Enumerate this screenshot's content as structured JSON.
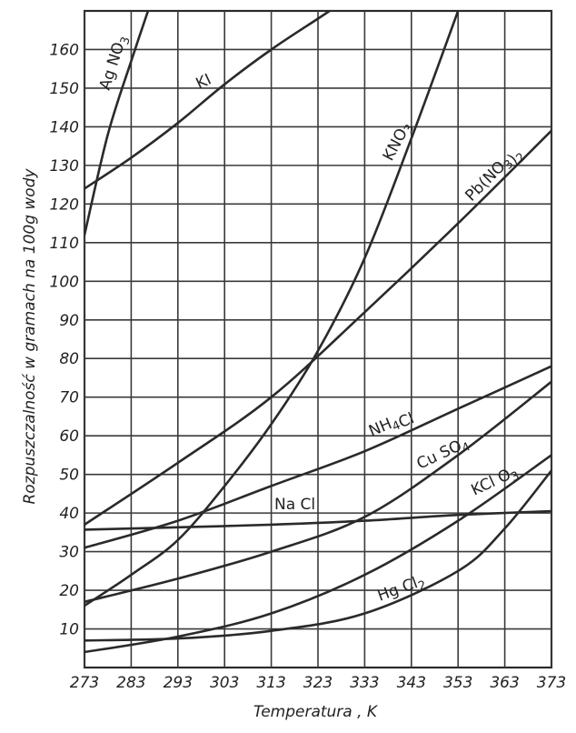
{
  "chart_data": {
    "type": "line",
    "xlabel": "Temperatura , K",
    "ylabel": "Rozpuszczalność w gramach na 100g wody",
    "xlim": [
      273,
      373
    ],
    "ylim": [
      0,
      170
    ],
    "x_ticks": [
      "273",
      "283",
      "293",
      "303",
      "313",
      "323",
      "333",
      "343",
      "353",
      "363",
      "373"
    ],
    "y_ticks": [
      "10",
      "20",
      "30",
      "40",
      "50",
      "60",
      "70",
      "80",
      "90",
      "100",
      "110",
      "120",
      "130",
      "140",
      "150",
      "160"
    ],
    "grid": true,
    "series": [
      {
        "name": "AgNO3",
        "label": "Ag NO3",
        "x": [
          273,
          278,
          283,
          288
        ],
        "y": [
          112,
          138,
          157,
          175
        ]
      },
      {
        "name": "KI",
        "label": "KI",
        "x": [
          273,
          283,
          293,
          303,
          313,
          323,
          328
        ],
        "y": [
          124,
          132,
          141,
          151,
          160,
          168,
          172
        ]
      },
      {
        "name": "KNO3",
        "label": "KNO3",
        "x": [
          273,
          283,
          293,
          303,
          313,
          323,
          333,
          343,
          353
        ],
        "y": [
          16,
          24,
          33,
          47,
          63,
          82,
          106,
          137,
          170
        ]
      },
      {
        "name": "Pb(NO3)2",
        "label": "Pb(NO3)2",
        "x": [
          273,
          293,
          313,
          333,
          353,
          373
        ],
        "y": [
          37,
          53,
          70,
          92,
          115,
          139
        ]
      },
      {
        "name": "NH4Cl",
        "label": "NH4Cl",
        "x": [
          273,
          293,
          313,
          333,
          353,
          373
        ],
        "y": [
          31,
          38,
          47,
          56,
          67,
          78
        ]
      },
      {
        "name": "CuSO4",
        "label": "Cu SO4",
        "x": [
          273,
          293,
          313,
          333,
          353,
          373
        ],
        "y": [
          17,
          23,
          30,
          39,
          55,
          74
        ]
      },
      {
        "name": "NaCl",
        "label": "Na Cl",
        "x": [
          273,
          293,
          313,
          333,
          353,
          373
        ],
        "y": [
          35.7,
          36.3,
          37,
          38,
          39.5,
          40.5
        ]
      },
      {
        "name": "KClO3",
        "label": "KCl O3",
        "x": [
          273,
          293,
          313,
          333,
          353,
          373
        ],
        "y": [
          4,
          8,
          14,
          24,
          38,
          55
        ]
      },
      {
        "name": "HgCl2",
        "label": "Hg Cl2",
        "x": [
          273,
          293,
          313,
          333,
          353,
          363,
          373
        ],
        "y": [
          7,
          7.5,
          9.5,
          14,
          25,
          36,
          51
        ]
      }
    ]
  }
}
